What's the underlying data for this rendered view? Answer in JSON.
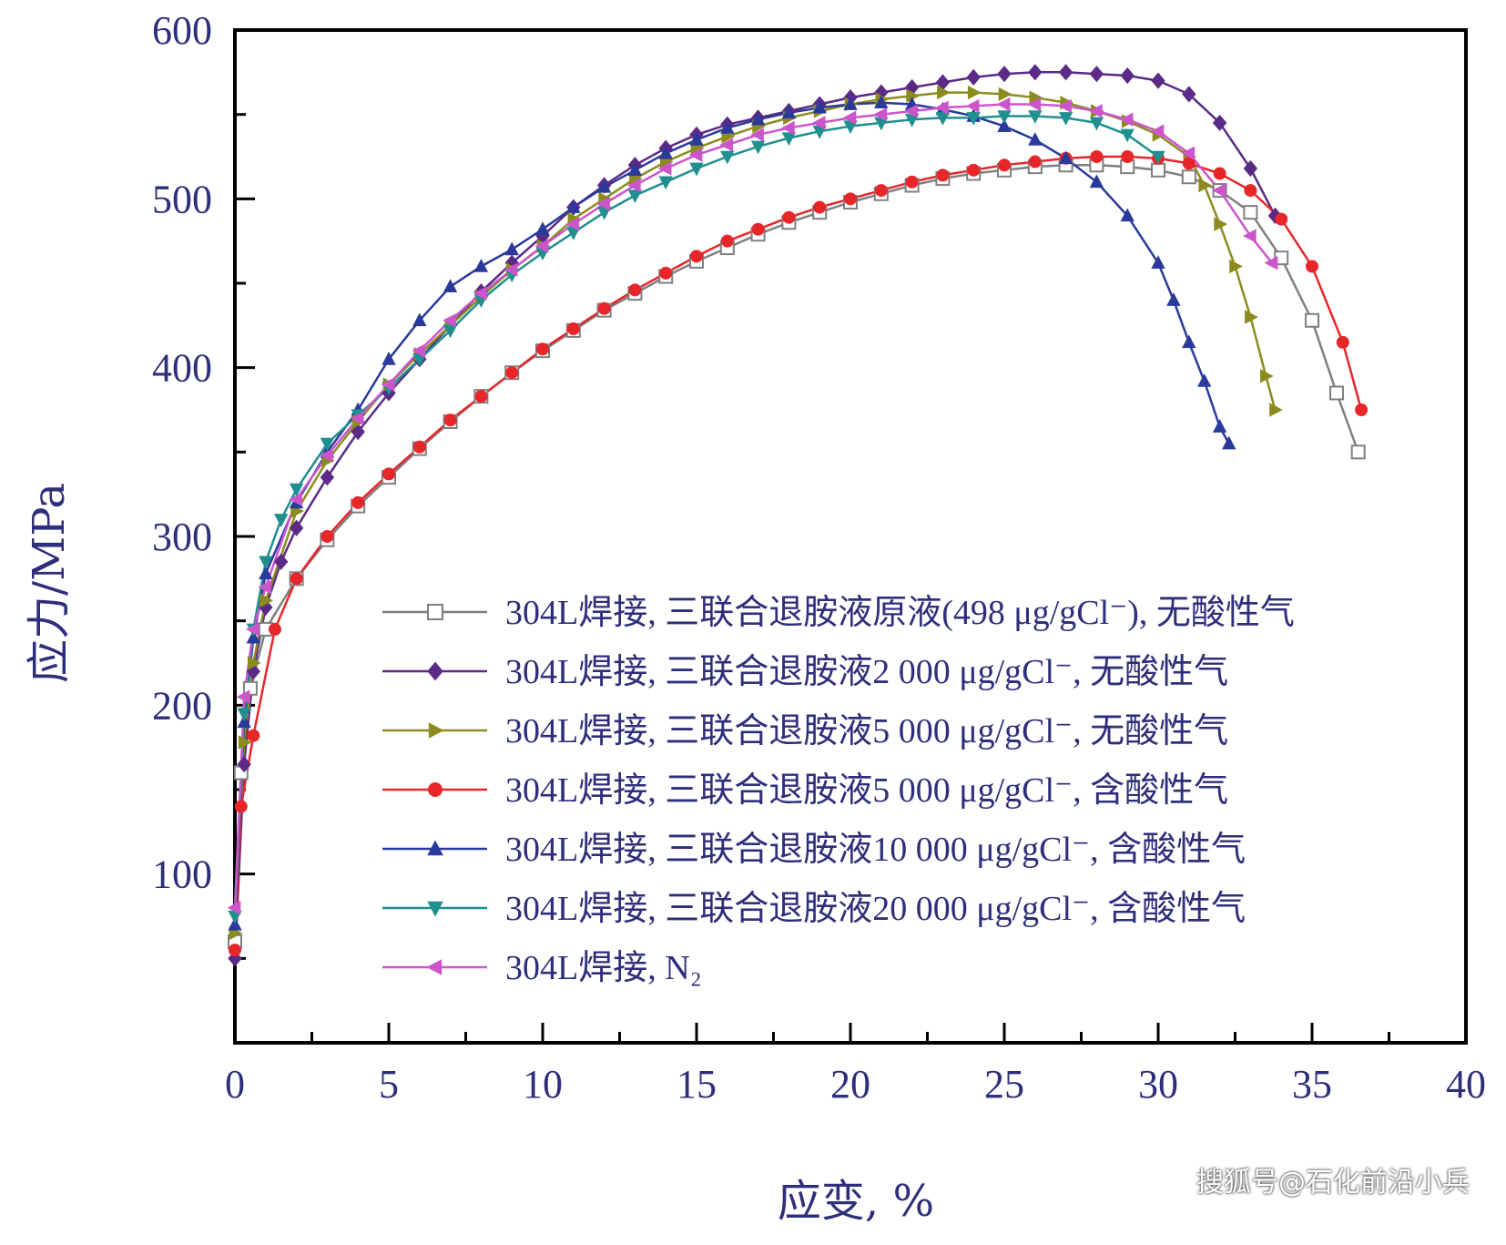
{
  "chart_data": {
    "type": "line",
    "xlabel": "应变, %",
    "ylabel": "应力/MPa",
    "xlim": [
      0,
      40
    ],
    "ylim": [
      0,
      600
    ],
    "xticks": [
      0,
      5,
      10,
      15,
      20,
      25,
      30,
      35,
      40
    ],
    "yticks": [
      100,
      200,
      300,
      400,
      500,
      600
    ],
    "grid": false,
    "legend_position": "lower-right",
    "series": [
      {
        "name": "304L焊接, 三联合退胺液原液(498 μg/gCl⁻), 无酸性气",
        "color": "#7f7f7f",
        "marker": "square-open",
        "x": [
          0,
          0.2,
          0.5,
          1,
          2,
          3,
          4,
          5,
          6,
          7,
          8,
          9,
          10,
          11,
          12,
          13,
          14,
          15,
          16,
          17,
          18,
          19,
          20,
          21,
          22,
          23,
          24,
          25,
          26,
          27,
          28,
          29,
          30,
          31,
          32,
          33,
          34,
          35,
          35.8,
          36.5
        ],
        "y": [
          60,
          160,
          210,
          245,
          275,
          298,
          318,
          335,
          352,
          368,
          383,
          397,
          410,
          422,
          434,
          444,
          454,
          463,
          471,
          479,
          486,
          492,
          498,
          503,
          508,
          512,
          515,
          517,
          519,
          520,
          520,
          519,
          517,
          513,
          505,
          492,
          465,
          428,
          385,
          350
        ]
      },
      {
        "name": "304L焊接, 三联合退胺液2 000 μg/gCl⁻, 无酸性气",
        "color": "#5b2a86",
        "marker": "diamond",
        "x": [
          0,
          0.3,
          0.6,
          1,
          1.5,
          2,
          3,
          4,
          5,
          6,
          7,
          8,
          9,
          10,
          11,
          12,
          13,
          14,
          15,
          16,
          17,
          18,
          19,
          20,
          21,
          22,
          23,
          24,
          25,
          26,
          27,
          28,
          29,
          30,
          31,
          32,
          33,
          33.8
        ],
        "y": [
          50,
          165,
          220,
          258,
          285,
          305,
          335,
          362,
          385,
          405,
          425,
          445,
          462,
          478,
          495,
          508,
          520,
          530,
          538,
          544,
          548,
          552,
          556,
          560,
          563,
          566,
          569,
          572,
          574,
          575,
          575,
          574,
          573,
          570,
          562,
          545,
          518,
          490
        ]
      },
      {
        "name": "304L焊接, 三联合退胺液5 000 μg/gCl⁻, 无酸性气",
        "color": "#8c8c1e",
        "marker": "triangle-right",
        "x": [
          0,
          0.3,
          0.6,
          1,
          2,
          3,
          4,
          5,
          6,
          7,
          8,
          9,
          10,
          11,
          12,
          13,
          14,
          15,
          16,
          17,
          18,
          19,
          20,
          21,
          22,
          23,
          24,
          25,
          26,
          27,
          28,
          29,
          30,
          31,
          31.5,
          32,
          32.5,
          33,
          33.5,
          33.8
        ],
        "y": [
          65,
          178,
          225,
          262,
          315,
          345,
          368,
          390,
          408,
          425,
          442,
          458,
          472,
          488,
          500,
          512,
          522,
          530,
          537,
          543,
          548,
          552,
          556,
          559,
          561,
          563,
          563,
          562,
          560,
          557,
          552,
          546,
          538,
          525,
          508,
          485,
          460,
          430,
          395,
          375
        ]
      },
      {
        "name": "304L焊接, 三联合退胺液5 000 μg/gCl⁻, 含酸性气",
        "color": "#e8262a",
        "marker": "circle",
        "x": [
          0,
          0.2,
          0.6,
          1.3,
          2,
          3,
          4,
          5,
          6,
          7,
          8,
          9,
          10,
          11,
          12,
          13,
          14,
          15,
          16,
          17,
          18,
          19,
          20,
          21,
          22,
          23,
          24,
          25,
          26,
          27,
          28,
          29,
          30,
          31,
          32,
          33,
          34,
          35,
          36,
          36.6
        ],
        "y": [
          55,
          140,
          182,
          245,
          275,
          300,
          320,
          337,
          353,
          369,
          383,
          397,
          411,
          423,
          435,
          446,
          456,
          466,
          475,
          482,
          489,
          495,
          500,
          505,
          510,
          514,
          517,
          520,
          522,
          524,
          525,
          525,
          524,
          521,
          515,
          505,
          488,
          460,
          415,
          375
        ]
      },
      {
        "name": "304L焊接, 三联合退胺液10 000 μg/gCl⁻, 含酸性气",
        "color": "#2a3a9a",
        "marker": "triangle-up",
        "x": [
          0,
          0.3,
          0.6,
          1,
          2,
          3,
          4,
          5,
          6,
          7,
          8,
          9,
          10,
          11,
          12,
          13,
          14,
          15,
          16,
          17,
          18,
          19,
          20,
          21,
          22,
          23,
          24,
          25,
          26,
          27,
          28,
          29,
          30,
          30.5,
          31,
          31.5,
          32,
          32.3
        ],
        "y": [
          70,
          190,
          240,
          278,
          320,
          350,
          375,
          405,
          428,
          448,
          460,
          470,
          482,
          495,
          507,
          517,
          527,
          535,
          542,
          547,
          551,
          554,
          556,
          557,
          556,
          553,
          549,
          543,
          535,
          524,
          510,
          490,
          462,
          440,
          415,
          392,
          365,
          355
        ]
      },
      {
        "name": "304L焊接, 三联合退胺液20 000 μg/gCl⁻, 含酸性气",
        "color": "#1f8f8f",
        "marker": "triangle-down",
        "x": [
          0,
          0.3,
          0.6,
          1,
          1.5,
          2,
          3,
          4,
          5,
          6,
          7,
          8,
          9,
          10,
          11,
          12,
          13,
          14,
          15,
          16,
          17,
          18,
          19,
          20,
          21,
          22,
          23,
          24,
          25,
          26,
          27,
          28,
          29,
          30
        ],
        "y": [
          75,
          195,
          245,
          285,
          310,
          328,
          355,
          372,
          388,
          405,
          422,
          440,
          455,
          468,
          480,
          492,
          502,
          510,
          518,
          525,
          531,
          536,
          540,
          543,
          545,
          547,
          548,
          548,
          549,
          549,
          548,
          545,
          538,
          525
        ]
      },
      {
        "name": "304L焊接, N₂",
        "color": "#cc55cc",
        "marker": "triangle-left",
        "x": [
          0,
          0.3,
          0.6,
          1,
          2,
          3,
          4,
          5,
          6,
          7,
          8,
          9,
          10,
          11,
          12,
          13,
          14,
          15,
          16,
          17,
          18,
          19,
          20,
          21,
          22,
          23,
          24,
          25,
          26,
          27,
          28,
          29,
          30,
          31,
          32,
          33,
          33.7
        ],
        "y": [
          80,
          205,
          245,
          270,
          322,
          348,
          370,
          390,
          410,
          428,
          444,
          458,
          472,
          485,
          497,
          508,
          518,
          526,
          532,
          538,
          542,
          545,
          548,
          550,
          552,
          554,
          555,
          556,
          556,
          555,
          552,
          547,
          540,
          527,
          505,
          478,
          462
        ]
      }
    ]
  },
  "watermark": "搜狐号@石化前沿小兵"
}
